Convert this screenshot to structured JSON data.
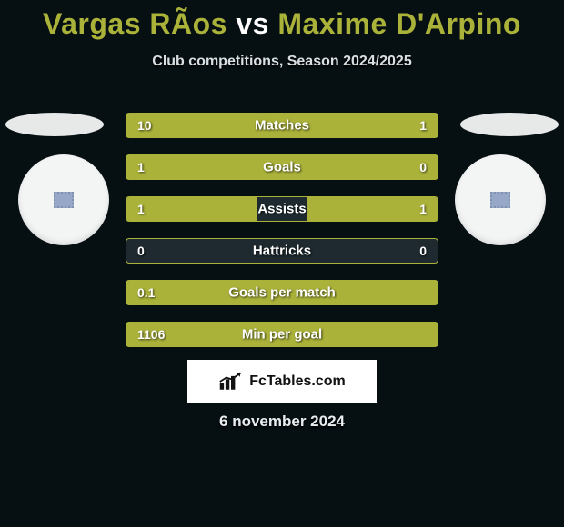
{
  "title": {
    "player1": "Vargas RÃ­os",
    "vs": "vs",
    "player2": "Maxime D'Arpino"
  },
  "subtitle": "Club competitions, Season 2024/2025",
  "colors": {
    "accent": "#aab23a",
    "background": "#060f12",
    "neutral_bar": "#1e2a2f",
    "text": "#ffffff"
  },
  "stats": [
    {
      "label": "Matches",
      "left_val": "10",
      "right_val": "1",
      "left_pct": 77,
      "right_pct": 23,
      "left_color": "#aab23a",
      "right_color": "#aab23a",
      "mid_color": null
    },
    {
      "label": "Goals",
      "left_val": "1",
      "right_val": "0",
      "left_pct": 100,
      "right_pct": 0,
      "left_color": "#aab23a",
      "right_color": "#aab23a",
      "mid_color": null
    },
    {
      "label": "Assists",
      "left_val": "1",
      "right_val": "1",
      "left_pct": 42,
      "right_pct": 42,
      "left_color": "#aab23a",
      "right_color": "#aab23a",
      "mid_color": "#1e2a2f"
    },
    {
      "label": "Hattricks",
      "left_val": "0",
      "right_val": "0",
      "left_pct": 0,
      "right_pct": 0,
      "left_color": "#aab23a",
      "right_color": "#aab23a",
      "mid_color": "#1e2a2f"
    },
    {
      "label": "Goals per match",
      "left_val": "0.1",
      "right_val": "",
      "left_pct": 100,
      "right_pct": 0,
      "left_color": "#aab23a",
      "right_color": "#aab23a",
      "mid_color": null
    },
    {
      "label": "Min per goal",
      "left_val": "1106",
      "right_val": "",
      "left_pct": 100,
      "right_pct": 0,
      "left_color": "#aab23a",
      "right_color": "#aab23a",
      "mid_color": null
    }
  ],
  "branding": {
    "text": "FcTables.com"
  },
  "date": "6 november 2024"
}
